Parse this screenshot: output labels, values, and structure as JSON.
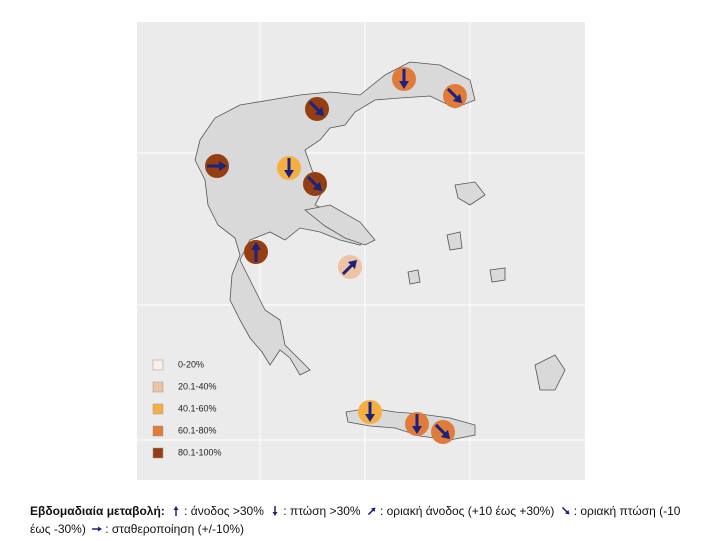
{
  "legend": {
    "items": [
      {
        "label": "0-20%",
        "color": "#fbeee6"
      },
      {
        "label": "20.1-40%",
        "color": "#eec3a4"
      },
      {
        "label": "40.1-60%",
        "color": "#f5b041"
      },
      {
        "label": "60.1-80%",
        "color": "#e07b39"
      },
      {
        "label": "80.1-100%",
        "color": "#943e12"
      }
    ]
  },
  "caption": {
    "title": "Εβδομαδιαία μεταβολή:",
    "items": [
      "άνοδος >30%",
      "πτώση >30%",
      "οριακή άνοδος (+10 έως +30%)",
      "οριακή πτώση  (-10 έως -30%)",
      "σταθεροποίηση (+/-10%)"
    ]
  }
}
